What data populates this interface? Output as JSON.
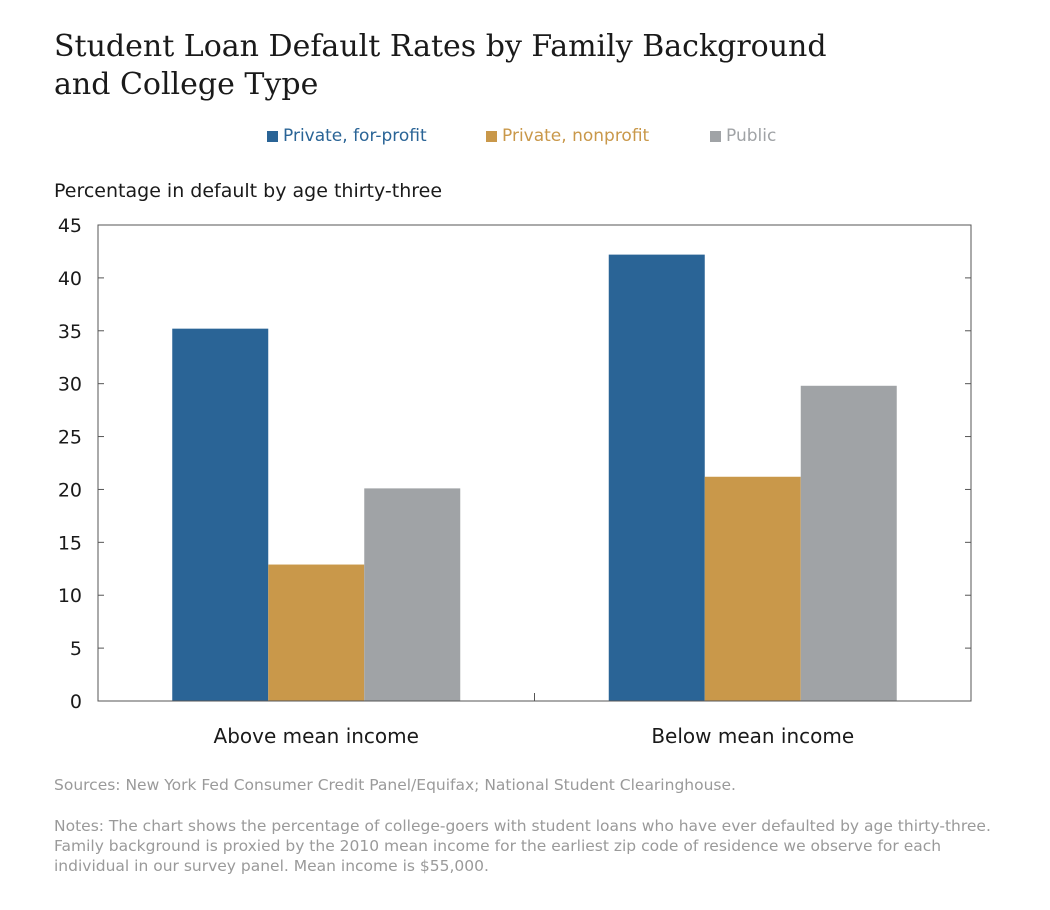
{
  "title_line1": "Student Loan Default Rates by Family Background",
  "title_line2": "and College Type",
  "sources": "Sources: New York Fed Consumer Credit Panel/Equifax; National Student Clearinghouse.",
  "notes": "Notes: The chart shows the percentage of college-goers with student loans who have ever defaulted by age thirty-three. Family background is proxied by the 2010 mean income for the earliest zip code of residence we observe for each individual in our survey panel. Mean income is $55,000.",
  "colors": {
    "for_profit": "#2a6496",
    "nonprofit": "#c9984a",
    "public": "#a0a3a6"
  },
  "chart_data": {
    "type": "bar",
    "title": "Student Loan Default Rates by Family Background and College Type",
    "ylabel": "Percentage in default by age thirty-three",
    "xlabel": "",
    "categories": [
      "Above mean income",
      "Below mean income"
    ],
    "series": [
      {
        "name": "Private, for-profit",
        "values": [
          35.2,
          42.2
        ]
      },
      {
        "name": "Private, nonprofit",
        "values": [
          12.9,
          21.2
        ]
      },
      {
        "name": "Public",
        "values": [
          20.1,
          29.8
        ]
      }
    ],
    "ylim": [
      0,
      45
    ],
    "yticks": [
      0,
      5,
      10,
      15,
      20,
      25,
      30,
      35,
      40,
      45
    ],
    "legend_position": "top",
    "grid": false
  }
}
